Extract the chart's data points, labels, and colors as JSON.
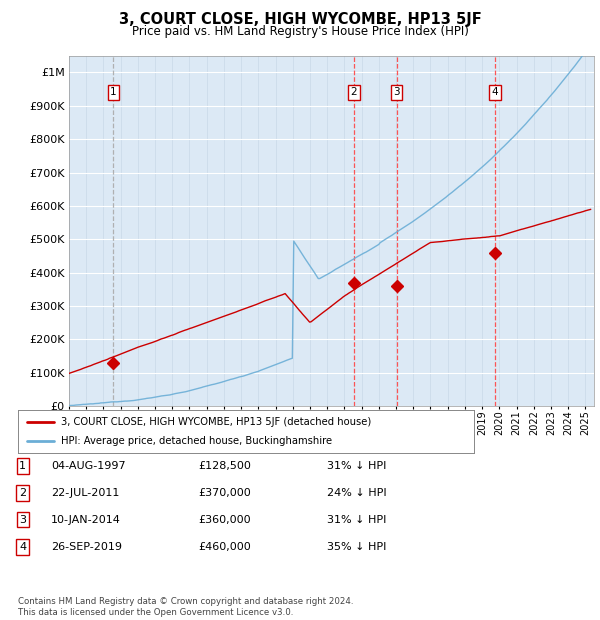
{
  "title": "3, COURT CLOSE, HIGH WYCOMBE, HP13 5JF",
  "subtitle": "Price paid vs. HM Land Registry's House Price Index (HPI)",
  "ylim": [
    0,
    1050000
  ],
  "yticks": [
    0,
    100000,
    200000,
    300000,
    400000,
    500000,
    600000,
    700000,
    800000,
    900000,
    1000000
  ],
  "ytick_labels": [
    "£0",
    "£100K",
    "£200K",
    "£300K",
    "£400K",
    "£500K",
    "£600K",
    "£700K",
    "£800K",
    "£900K",
    "£1M"
  ],
  "xlim_start": 1995.0,
  "xlim_end": 2025.5,
  "hpi_color": "#6baed6",
  "price_color": "#cc0000",
  "dashed_line_color": "#ff4444",
  "dashed_line_color_1": "#aaaaaa",
  "background_color": "#dce9f5",
  "purchases": [
    {
      "year_x": 1997.585,
      "price": 128500,
      "label": "1"
    },
    {
      "year_x": 2011.555,
      "price": 370000,
      "label": "2"
    },
    {
      "year_x": 2014.027,
      "price": 360000,
      "label": "3"
    },
    {
      "year_x": 2019.737,
      "price": 460000,
      "label": "4"
    }
  ],
  "legend_entries": [
    {
      "label": "3, COURT CLOSE, HIGH WYCOMBE, HP13 5JF (detached house)",
      "color": "#cc0000"
    },
    {
      "label": "HPI: Average price, detached house, Buckinghamshire",
      "color": "#6baed6"
    }
  ],
  "table_rows": [
    {
      "num": "1",
      "date": "04-AUG-1997",
      "price": "£128,500",
      "note": "31% ↓ HPI"
    },
    {
      "num": "2",
      "date": "22-JUL-2011",
      "price": "£370,000",
      "note": "24% ↓ HPI"
    },
    {
      "num": "3",
      "date": "10-JAN-2014",
      "price": "£360,000",
      "note": "31% ↓ HPI"
    },
    {
      "num": "4",
      "date": "26-SEP-2019",
      "price": "£460,000",
      "note": "35% ↓ HPI"
    }
  ],
  "footer": "Contains HM Land Registry data © Crown copyright and database right 2024.\nThis data is licensed under the Open Government Licence v3.0."
}
